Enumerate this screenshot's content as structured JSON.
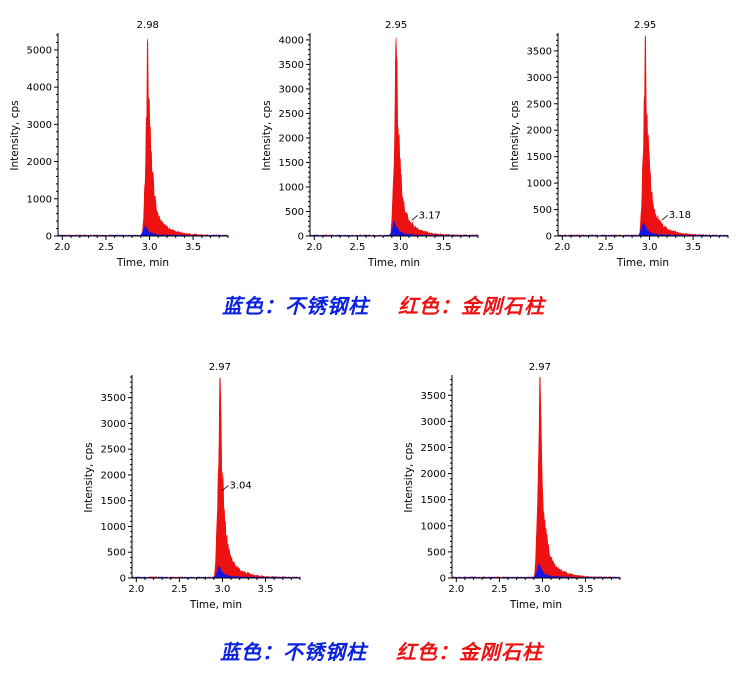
{
  "colors": {
    "stainless": "#1515e6",
    "diamond": "#ee1111",
    "axis": "#000000"
  },
  "legend": {
    "blue_label": "蓝色：不锈钢柱",
    "red_label": "红色：金刚石柱"
  },
  "chart_data": [
    {
      "type": "area",
      "xlabel": "Time, min",
      "ylabel": "Intensity, cps",
      "xlim": [
        1.95,
        3.9
      ],
      "ylim": [
        0,
        5400
      ],
      "xticks": [
        2.0,
        2.5,
        3.0,
        3.5
      ],
      "yticks": [
        0,
        1000,
        2000,
        3000,
        4000,
        5000
      ],
      "peak_labels": [
        {
          "x": 2.98,
          "y": 5300,
          "text": "2.98"
        }
      ],
      "series": [
        {
          "color": "#ee1111",
          "peak": {
            "rt": 2.98,
            "height": 5300
          }
        },
        {
          "color": "#1515e6",
          "peak": {
            "rt": 2.95,
            "height": 280
          }
        }
      ]
    },
    {
      "type": "area",
      "xlabel": "Time, min",
      "ylabel": "Intensity, cps",
      "xlim": [
        1.95,
        3.9
      ],
      "ylim": [
        0,
        4100
      ],
      "xticks": [
        2.0,
        2.5,
        3.0,
        3.5
      ],
      "yticks": [
        0,
        500,
        1000,
        1500,
        2000,
        2500,
        3000,
        3500,
        4000
      ],
      "peak_labels": [
        {
          "x": 2.95,
          "y": 4050,
          "text": "2.95"
        },
        {
          "x": 3.17,
          "y": 320,
          "text": "3.17",
          "callout": true
        }
      ],
      "series": [
        {
          "color": "#ee1111",
          "peak": {
            "rt": 2.95,
            "height": 4050
          }
        },
        {
          "color": "#1515e6",
          "peak": {
            "rt": 2.93,
            "height": 300
          }
        }
      ]
    },
    {
      "type": "area",
      "xlabel": "Time, min",
      "ylabel": "Intensity, cps",
      "xlim": [
        1.95,
        3.9
      ],
      "ylim": [
        0,
        3800
      ],
      "xticks": [
        2.0,
        2.5,
        3.0,
        3.5
      ],
      "yticks": [
        0,
        500,
        1000,
        1500,
        2000,
        2500,
        3000,
        3500
      ],
      "peak_labels": [
        {
          "x": 2.95,
          "y": 3780,
          "text": "2.95"
        },
        {
          "x": 3.18,
          "y": 300,
          "text": "3.18",
          "callout": true
        }
      ],
      "series": [
        {
          "color": "#ee1111",
          "peak": {
            "rt": 2.95,
            "height": 3780
          }
        },
        {
          "color": "#1515e6",
          "peak": {
            "rt": 2.93,
            "height": 270
          }
        }
      ]
    },
    {
      "type": "area",
      "xlabel": "Time, min",
      "ylabel": "Intensity, cps",
      "xlim": [
        1.95,
        3.9
      ],
      "ylim": [
        0,
        3900
      ],
      "xticks": [
        2.0,
        2.5,
        3.0,
        3.5
      ],
      "yticks": [
        0,
        500,
        1000,
        1500,
        2000,
        2500,
        3000,
        3500
      ],
      "peak_labels": [
        {
          "x": 2.97,
          "y": 3880,
          "text": "2.97"
        },
        {
          "x": 3.04,
          "y": 1700,
          "text": "3.04",
          "callout": true
        }
      ],
      "series": [
        {
          "color": "#ee1111",
          "peak": {
            "rt": 2.97,
            "height": 3880
          }
        },
        {
          "color": "#1515e6",
          "peak": {
            "rt": 2.96,
            "height": 230
          }
        }
      ]
    },
    {
      "type": "area",
      "xlabel": "Time, min",
      "ylabel": "Intensity, cps",
      "xlim": [
        1.95,
        3.9
      ],
      "ylim": [
        0,
        3850
      ],
      "xticks": [
        2.0,
        2.5,
        3.0,
        3.5
      ],
      "yticks": [
        0,
        500,
        1000,
        1500,
        2000,
        2500,
        3000,
        3500
      ],
      "peak_labels": [
        {
          "x": 2.97,
          "y": 3840,
          "text": "2.97"
        }
      ],
      "series": [
        {
          "color": "#ee1111",
          "peak": {
            "rt": 2.97,
            "height": 3840
          }
        },
        {
          "color": "#1515e6",
          "peak": {
            "rt": 2.96,
            "height": 270
          }
        }
      ]
    }
  ]
}
